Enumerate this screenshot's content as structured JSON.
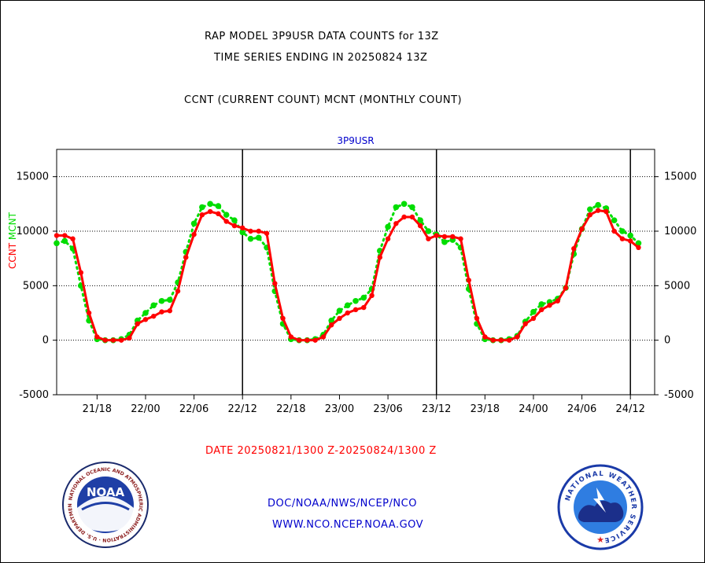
{
  "title_line1": "RAP MODEL 3P9USR DATA COUNTS for 13Z",
  "title_line2": "TIME SERIES ENDING IN 20250824 13Z",
  "title_line3": "CCNT (CURRENT COUNT) MCNT (MONTHLY COUNT)",
  "footer": {
    "date_range": "DATE 20250821/1300 Z-20250824/1300 Z",
    "org_path": "DOC/NOAA/NWS/NCEP/NCO",
    "website": "WWW.NCO.NCEP.NOAA.GOV"
  },
  "logos": {
    "left_text": "NATIONAL OCEANIC AND ATMOSPHERIC ADMINISTRATION · U.S. DEPARTMENT OF COMMERCE",
    "left_center": "NOAA",
    "right_text": "NATIONAL WEATHER SERVICE"
  },
  "colors": {
    "ccnt": "#ff0000",
    "mcnt": "#00dd00",
    "title_blue": "#0000cc",
    "axis": "#000000"
  },
  "chart_data": {
    "type": "line",
    "panel_title": "3P9USR",
    "ylabel_left_parts": [
      "CCNT",
      "MCNT"
    ],
    "ylim": [
      -5000,
      17500
    ],
    "yticks": [
      -5000,
      0,
      5000,
      10000,
      15000
    ],
    "ytick_labels": [
      "-5000",
      "0",
      "5000",
      "10000",
      "15000"
    ],
    "xlim": [
      0,
      74
    ],
    "xticks": [
      5,
      11,
      17,
      23,
      29,
      35,
      41,
      47,
      53,
      59,
      65,
      71
    ],
    "xtick_labels": [
      "21/18",
      "22/00",
      "22/06",
      "22/12",
      "22/18",
      "23/00",
      "23/06",
      "23/12",
      "23/18",
      "24/00",
      "24/06",
      "24/12"
    ],
    "vertical_lines_x": [
      23,
      47,
      71
    ],
    "grid": "horizontal dotted",
    "series": [
      {
        "name": "CCNT",
        "color": "#ff0000",
        "x": [
          0,
          1,
          2,
          3,
          4,
          5,
          6,
          7,
          8,
          9,
          10,
          11,
          12,
          13,
          14,
          15,
          16,
          17,
          18,
          19,
          20,
          21,
          22,
          23,
          24,
          25,
          26,
          27,
          28,
          29,
          30,
          31,
          32,
          33,
          34,
          35,
          36,
          37,
          38,
          39,
          40,
          41,
          42,
          43,
          44,
          45,
          46,
          47,
          48,
          49,
          50,
          51,
          52,
          53,
          54,
          55,
          56,
          57,
          58,
          59,
          60,
          61,
          62,
          63,
          64,
          65,
          66,
          67,
          68,
          69,
          70,
          71,
          72
        ],
        "values": [
          9600,
          9600,
          9300,
          6200,
          2500,
          300,
          0,
          0,
          0,
          200,
          1500,
          1900,
          2200,
          2600,
          2700,
          4500,
          7600,
          9700,
          11500,
          11800,
          11600,
          10900,
          10500,
          10300,
          10000,
          10000,
          9800,
          5200,
          2000,
          300,
          0,
          0,
          0,
          300,
          1400,
          2000,
          2500,
          2800,
          3000,
          4100,
          7600,
          9300,
          10700,
          11300,
          11300,
          10500,
          9300,
          9600,
          9500,
          9500,
          9300,
          5500,
          2000,
          300,
          0,
          0,
          0,
          300,
          1500,
          2000,
          2800,
          3200,
          3600,
          4800,
          8400,
          10200,
          11500,
          11900,
          11800,
          10000,
          9300,
          9100,
          8500
        ]
      },
      {
        "name": "MCNT",
        "color": "#00dd00",
        "x": [
          0,
          1,
          2,
          3,
          4,
          5,
          6,
          7,
          8,
          9,
          10,
          11,
          12,
          13,
          14,
          15,
          16,
          17,
          18,
          19,
          20,
          21,
          22,
          23,
          24,
          25,
          26,
          27,
          28,
          29,
          30,
          31,
          32,
          33,
          34,
          35,
          36,
          37,
          38,
          39,
          40,
          41,
          42,
          43,
          44,
          45,
          46,
          47,
          48,
          49,
          50,
          51,
          52,
          53,
          54,
          55,
          56,
          57,
          58,
          59,
          60,
          61,
          62,
          63,
          64,
          65,
          66,
          67,
          68,
          69,
          70,
          71,
          72
        ],
        "values": [
          8900,
          9100,
          8400,
          5000,
          1800,
          100,
          0,
          0,
          100,
          500,
          1800,
          2500,
          3200,
          3600,
          3700,
          5300,
          8100,
          10700,
          12200,
          12500,
          12300,
          11500,
          11000,
          9900,
          9300,
          9400,
          8500,
          4500,
          1500,
          100,
          0,
          0,
          100,
          500,
          1800,
          2700,
          3200,
          3600,
          3900,
          4700,
          8200,
          10400,
          12200,
          12500,
          12200,
          11000,
          10000,
          9700,
          9000,
          9200,
          8500,
          4700,
          1500,
          100,
          0,
          0,
          100,
          400,
          1700,
          2600,
          3300,
          3500,
          3800,
          4800,
          7900,
          10200,
          12000,
          12400,
          12100,
          11000,
          10000,
          9600,
          8900
        ]
      }
    ]
  }
}
